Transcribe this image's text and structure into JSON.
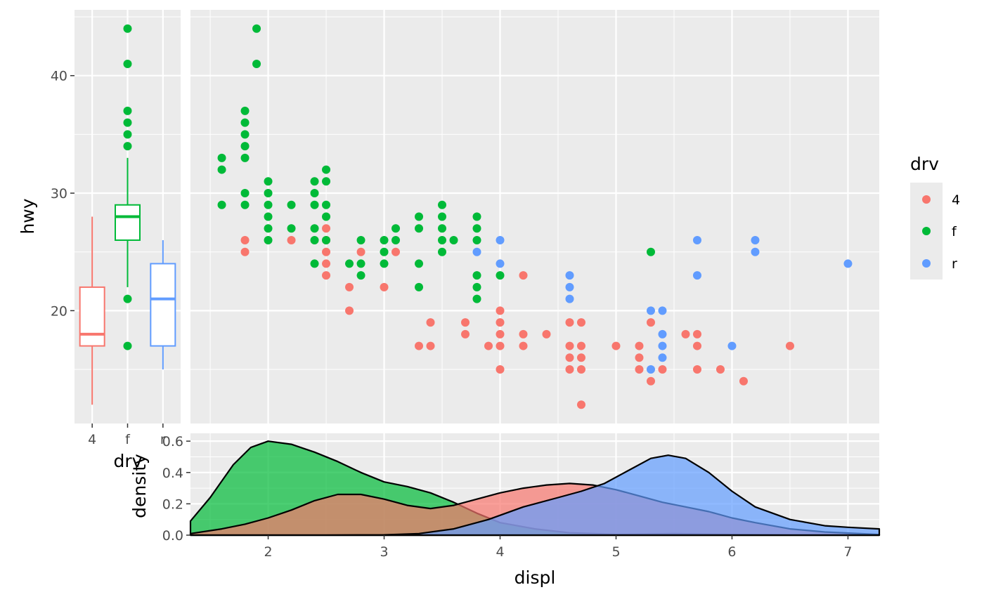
{
  "colors": {
    "panel_bg": "#ebebeb",
    "grid": "#ffffff",
    "tick_text": "#4d4d4d",
    "4": "#F8766D",
    "f": "#00BA38",
    "r": "#619CFF"
  },
  "chart_data": [
    {
      "type": "boxplot",
      "xlabel": "drv",
      "ylabel": "hwy",
      "categories": [
        "4",
        "f",
        "r"
      ],
      "ylim": [
        10.4,
        45.6
      ],
      "y_ticks": [
        "20",
        "30",
        "40"
      ],
      "boxes": [
        {
          "category": "4",
          "min": 12,
          "q1": 17,
          "median": 18,
          "q3": 22,
          "max": 28,
          "outliers": []
        },
        {
          "category": "f",
          "min": 22,
          "q1": 26,
          "median": 28,
          "q3": 29,
          "max": 33,
          "outliers": [
            17,
            21,
            34,
            35,
            36,
            37,
            41,
            44
          ]
        },
        {
          "category": "r",
          "min": 15,
          "q1": 17,
          "median": 21,
          "q3": 24,
          "max": 26,
          "outliers": []
        }
      ]
    },
    {
      "type": "scatter",
      "xlim": [
        1.33,
        7.27
      ],
      "ylim": [
        10.4,
        45.6
      ],
      "x_ticks": [
        2,
        3,
        4,
        5,
        6,
        7
      ],
      "legend": {
        "title": "drv",
        "position": "right",
        "entries": [
          "4",
          "f",
          "r"
        ]
      },
      "series": [
        {
          "name": "4",
          "points": [
            [
              1.8,
              26
            ],
            [
              1.8,
              25
            ],
            [
              2.2,
              26
            ],
            [
              2.5,
              27
            ],
            [
              2.5,
              26
            ],
            [
              2.5,
              25
            ],
            [
              2.5,
              24
            ],
            [
              2.5,
              23
            ],
            [
              2.7,
              22
            ],
            [
              2.7,
              20
            ],
            [
              2.8,
              25
            ],
            [
              3.0,
              22
            ],
            [
              3.1,
              25
            ],
            [
              3.3,
              17
            ],
            [
              3.4,
              19
            ],
            [
              3.4,
              17
            ],
            [
              3.7,
              19
            ],
            [
              3.7,
              18
            ],
            [
              3.9,
              17
            ],
            [
              4.0,
              20
            ],
            [
              4.0,
              19
            ],
            [
              4.0,
              18
            ],
            [
              4.0,
              17
            ],
            [
              4.0,
              15
            ],
            [
              4.2,
              23
            ],
            [
              4.2,
              18
            ],
            [
              4.2,
              17
            ],
            [
              4.4,
              18
            ],
            [
              4.6,
              19
            ],
            [
              4.6,
              17
            ],
            [
              4.6,
              16
            ],
            [
              4.6,
              15
            ],
            [
              4.7,
              19
            ],
            [
              4.7,
              17
            ],
            [
              4.7,
              16
            ],
            [
              4.7,
              15
            ],
            [
              4.7,
              12
            ],
            [
              5.0,
              17
            ],
            [
              5.2,
              17
            ],
            [
              5.2,
              16
            ],
            [
              5.2,
              15
            ],
            [
              5.3,
              19
            ],
            [
              5.3,
              14
            ],
            [
              5.4,
              15
            ],
            [
              5.6,
              18
            ],
            [
              5.7,
              18
            ],
            [
              5.7,
              17
            ],
            [
              5.7,
              15
            ],
            [
              5.9,
              15
            ],
            [
              6.1,
              14
            ],
            [
              6.5,
              17
            ]
          ]
        },
        {
          "name": "f",
          "points": [
            [
              1.6,
              33
            ],
            [
              1.6,
              32
            ],
            [
              1.6,
              29
            ],
            [
              1.8,
              37
            ],
            [
              1.8,
              36
            ],
            [
              1.8,
              35
            ],
            [
              1.8,
              34
            ],
            [
              1.8,
              33
            ],
            [
              1.8,
              30
            ],
            [
              1.8,
              29
            ],
            [
              1.9,
              44
            ],
            [
              1.9,
              41
            ],
            [
              2.0,
              31
            ],
            [
              2.0,
              30
            ],
            [
              2.0,
              29
            ],
            [
              2.0,
              28
            ],
            [
              2.0,
              27
            ],
            [
              2.0,
              26
            ],
            [
              2.2,
              29
            ],
            [
              2.2,
              27
            ],
            [
              2.4,
              31
            ],
            [
              2.4,
              30
            ],
            [
              2.4,
              29
            ],
            [
              2.4,
              27
            ],
            [
              2.4,
              26
            ],
            [
              2.4,
              24
            ],
            [
              2.5,
              32
            ],
            [
              2.5,
              31
            ],
            [
              2.5,
              29
            ],
            [
              2.5,
              28
            ],
            [
              2.5,
              26
            ],
            [
              2.7,
              24
            ],
            [
              2.8,
              26
            ],
            [
              2.8,
              24
            ],
            [
              2.8,
              23
            ],
            [
              3.0,
              26
            ],
            [
              3.0,
              25
            ],
            [
              3.0,
              24
            ],
            [
              3.1,
              27
            ],
            [
              3.1,
              26
            ],
            [
              3.3,
              28
            ],
            [
              3.3,
              27
            ],
            [
              3.3,
              24
            ],
            [
              3.3,
              22
            ],
            [
              3.5,
              29
            ],
            [
              3.5,
              28
            ],
            [
              3.5,
              27
            ],
            [
              3.5,
              26
            ],
            [
              3.5,
              25
            ],
            [
              3.6,
              26
            ],
            [
              3.8,
              28
            ],
            [
              3.8,
              27
            ],
            [
              3.8,
              26
            ],
            [
              3.8,
              23
            ],
            [
              3.8,
              22
            ],
            [
              3.8,
              21
            ],
            [
              4.0,
              23
            ],
            [
              5.3,
              25
            ]
          ]
        },
        {
          "name": "r",
          "points": [
            [
              3.8,
              25
            ],
            [
              4.0,
              26
            ],
            [
              4.0,
              24
            ],
            [
              4.6,
              23
            ],
            [
              4.6,
              22
            ],
            [
              4.6,
              21
            ],
            [
              5.3,
              20
            ],
            [
              5.3,
              15
            ],
            [
              5.4,
              20
            ],
            [
              5.4,
              18
            ],
            [
              5.4,
              17
            ],
            [
              5.4,
              16
            ],
            [
              5.7,
              26
            ],
            [
              5.7,
              23
            ],
            [
              6.0,
              17
            ],
            [
              6.2,
              26
            ],
            [
              6.2,
              25
            ],
            [
              7.0,
              24
            ]
          ]
        }
      ]
    },
    {
      "type": "area",
      "xlabel": "displ",
      "ylabel": "density",
      "xlim": [
        1.33,
        7.27
      ],
      "ylim": [
        0,
        0.65
      ],
      "x_ticks": [
        "2",
        "3",
        "4",
        "5",
        "6",
        "7"
      ],
      "y_ticks": [
        "0.0",
        "0.2",
        "0.4",
        "0.6"
      ],
      "fill_opacity": 0.7,
      "series": [
        {
          "name": "f",
          "x": [
            1.33,
            1.5,
            1.7,
            1.85,
            2.0,
            2.2,
            2.4,
            2.6,
            2.8,
            3.0,
            3.2,
            3.4,
            3.6,
            3.8,
            4.0,
            4.3,
            4.6,
            5.0,
            5.5,
            6.0,
            6.5,
            7.27
          ],
          "y": [
            0.09,
            0.24,
            0.45,
            0.56,
            0.6,
            0.58,
            0.53,
            0.47,
            0.4,
            0.34,
            0.31,
            0.27,
            0.21,
            0.14,
            0.08,
            0.04,
            0.015,
            0.005,
            0.01,
            0.005,
            0.002,
            0.001
          ]
        },
        {
          "name": "4",
          "x": [
            1.33,
            1.6,
            1.8,
            2.0,
            2.2,
            2.4,
            2.6,
            2.8,
            3.0,
            3.2,
            3.4,
            3.6,
            3.8,
            4.0,
            4.2,
            4.4,
            4.6,
            4.8,
            5.0,
            5.2,
            5.4,
            5.6,
            5.8,
            6.0,
            6.2,
            6.5,
            6.8,
            7.27
          ],
          "y": [
            0.01,
            0.04,
            0.07,
            0.11,
            0.16,
            0.22,
            0.26,
            0.26,
            0.23,
            0.19,
            0.17,
            0.19,
            0.23,
            0.27,
            0.3,
            0.32,
            0.33,
            0.32,
            0.29,
            0.25,
            0.21,
            0.18,
            0.15,
            0.11,
            0.08,
            0.04,
            0.02,
            0.004
          ]
        },
        {
          "name": "r",
          "x": [
            1.33,
            2.5,
            3.0,
            3.3,
            3.6,
            3.9,
            4.2,
            4.5,
            4.7,
            4.9,
            5.1,
            5.3,
            5.45,
            5.6,
            5.8,
            6.0,
            6.2,
            6.5,
            6.8,
            7.0,
            7.27
          ],
          "y": [
            0,
            0,
            0.002,
            0.01,
            0.04,
            0.1,
            0.18,
            0.24,
            0.28,
            0.33,
            0.41,
            0.49,
            0.51,
            0.49,
            0.4,
            0.28,
            0.18,
            0.1,
            0.06,
            0.05,
            0.04
          ]
        }
      ]
    }
  ]
}
